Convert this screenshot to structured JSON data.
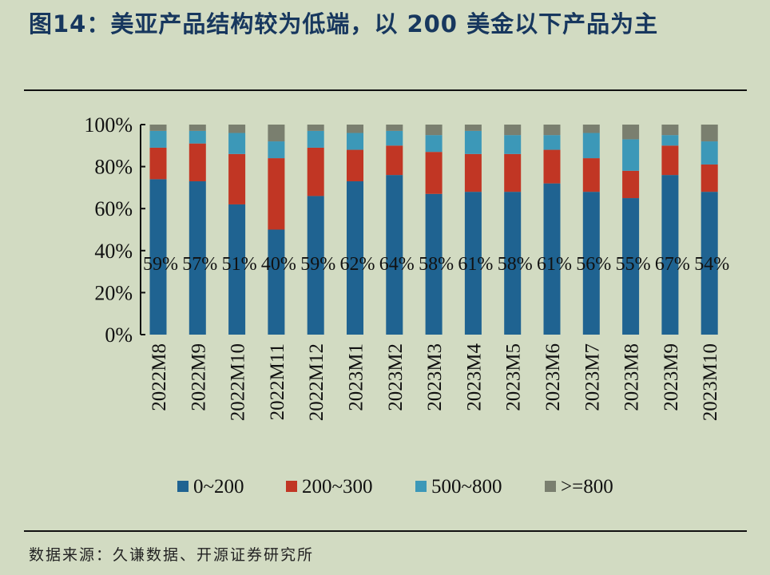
{
  "title": "图14：美亚产品结构较为低端，以 200 美金以下产品为主",
  "source": "数据来源：久谦数据、开源证券研究所",
  "chart_data": {
    "type": "bar",
    "stacked": true,
    "percent": true,
    "categories": [
      "2022M8",
      "2022M9",
      "2022M10",
      "2022M11",
      "2022M12",
      "2023M1",
      "2023M2",
      "2023M3",
      "2023M4",
      "2023M5",
      "2023M6",
      "2023M7",
      "2023M8",
      "2023M9",
      "2023M10"
    ],
    "series": [
      {
        "name": "0~200",
        "color": "#1f6391",
        "values": [
          74,
          73,
          62,
          50,
          66,
          73,
          76,
          67,
          68,
          68,
          72,
          68,
          65,
          76,
          68
        ]
      },
      {
        "name": "200~300",
        "color": "#c13624",
        "values": [
          15,
          18,
          24,
          34,
          23,
          15,
          14,
          20,
          18,
          18,
          16,
          16,
          13,
          14,
          13
        ]
      },
      {
        "name": "500~800",
        "color": "#3c98b8",
        "values": [
          8,
          6,
          10,
          8,
          8,
          8,
          7,
          8,
          11,
          9,
          7,
          12,
          15,
          5,
          11
        ]
      },
      {
        "name": ">=800",
        "color": "#7a7f6f",
        "values": [
          3,
          3,
          4,
          8,
          3,
          4,
          3,
          5,
          3,
          5,
          5,
          4,
          7,
          5,
          8
        ]
      }
    ],
    "data_labels": [
      "59%",
      "57%",
      "51%",
      "40%",
      "59%",
      "62%",
      "64%",
      "58%",
      "61%",
      "58%",
      "61%",
      "56%",
      "55%",
      "67%",
      "54%"
    ],
    "yticks": [
      "0%",
      "20%",
      "40%",
      "60%",
      "80%",
      "100%"
    ],
    "ylim": [
      0,
      100
    ],
    "legend_position": "bottom",
    "grid": false
  }
}
